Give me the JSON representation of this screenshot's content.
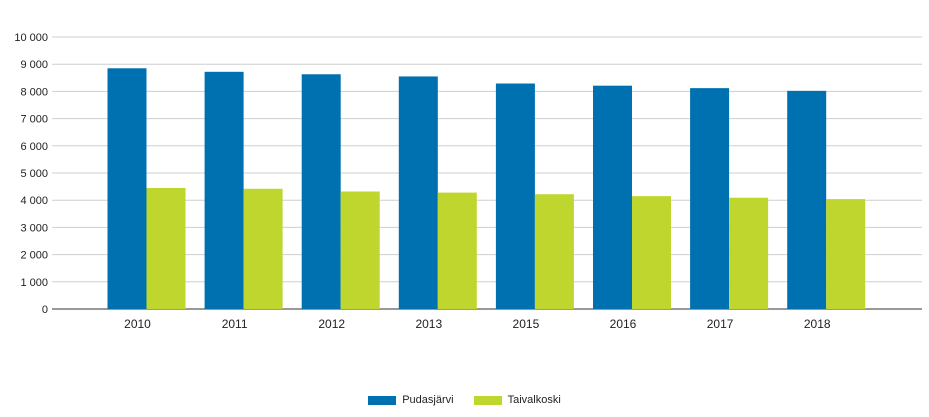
{
  "chart_data": {
    "type": "bar",
    "categories": [
      "2010",
      "2011",
      "2012",
      "2013",
      "2015",
      "2016",
      "2017",
      "2018"
    ],
    "series": [
      {
        "name": "Pudasjärvi",
        "color": "#0071b0",
        "values": [
          8850,
          8720,
          8630,
          8550,
          8290,
          8210,
          8120,
          8020
        ]
      },
      {
        "name": "Taivalkoski",
        "color": "#bfd62f",
        "values": [
          4450,
          4420,
          4320,
          4280,
          4220,
          4150,
          4090,
          4040
        ]
      }
    ],
    "ylim": [
      0,
      10000
    ],
    "ytick_labels": [
      "0",
      "1 000",
      "2 000",
      "3 000",
      "4 000",
      "5 000",
      "6 000",
      "7 000",
      "8 000",
      "9 000",
      "10 000"
    ],
    "grid": true,
    "legend_position": "bottom-center",
    "title": "",
    "xlabel": "",
    "ylabel": ""
  }
}
